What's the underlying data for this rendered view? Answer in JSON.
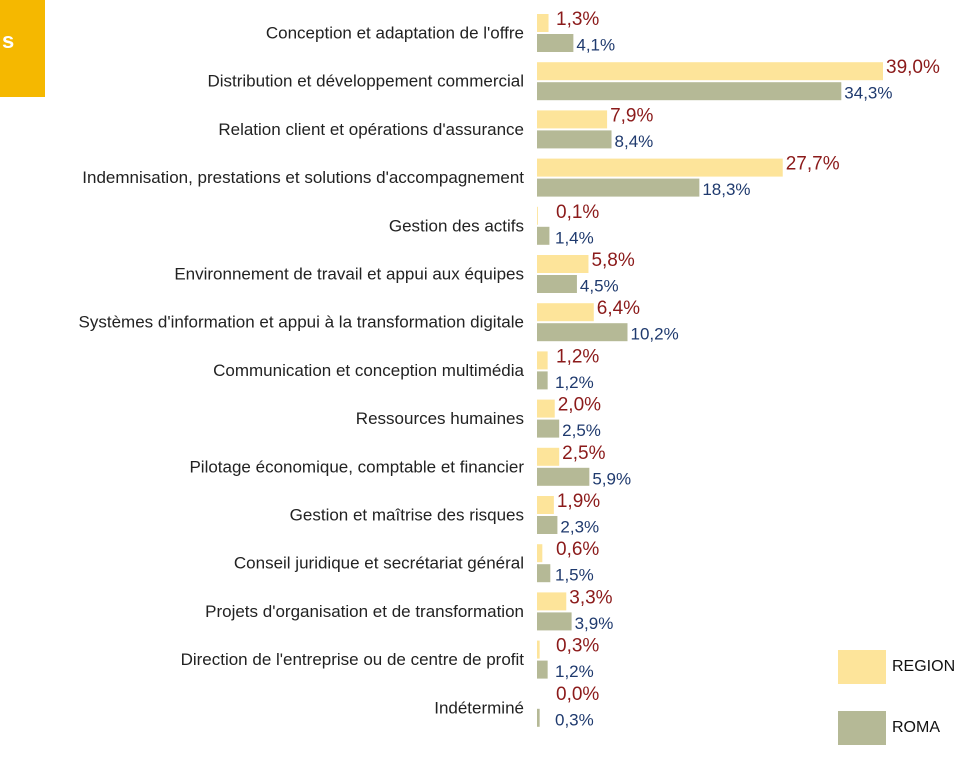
{
  "badge": "s",
  "chart_data": {
    "type": "bar",
    "orientation": "horizontal",
    "categories": [
      "Conception et adaptation de l'offre",
      "Distribution et développement commercial",
      "Relation client et opérations d'assurance",
      "Indemnisation, prestations et solutions d'accompagnement",
      "Gestion des actifs",
      "Environnement de travail et appui aux équipes",
      "Systèmes d'information et appui à la transformation digitale",
      "Communication et conception multimédia",
      "Ressources humaines",
      "Pilotage économique, comptable et financier",
      "Gestion et maîtrise des risques",
      "Conseil juridique et secrétariat général",
      "Projets d'organisation et de transformation",
      "Direction de l'entreprise ou de centre de profit",
      "Indéterminé"
    ],
    "series": [
      {
        "name": "REGION",
        "color": "#fde49a",
        "label_color": "#8b1a1a",
        "values": [
          1.3,
          39.0,
          7.9,
          27.7,
          0.1,
          5.8,
          6.4,
          1.2,
          2.0,
          2.5,
          1.9,
          0.6,
          3.3,
          0.3,
          0.0
        ],
        "value_labels": [
          "1,3%",
          "39,0%",
          "7,9%",
          "27,7%",
          "0,1%",
          "5,8%",
          "6,4%",
          "1,2%",
          "2,0%",
          "2,5%",
          "1,9%",
          "0,6%",
          "3,3%",
          "0,3%",
          "0,0%"
        ]
      },
      {
        "name": "ROMA",
        "color": "#b5b996",
        "label_color": "#1f3a6e",
        "values": [
          4.1,
          34.3,
          8.4,
          18.3,
          1.4,
          4.5,
          10.2,
          1.2,
          2.5,
          5.9,
          2.3,
          1.5,
          3.9,
          1.2,
          0.3
        ],
        "value_labels": [
          "4,1%",
          "34,3%",
          "8,4%",
          "18,3%",
          "1,4%",
          "4,5%",
          "10,2%",
          "1,2%",
          "2,5%",
          "5,9%",
          "2,3%",
          "1,5%",
          "3,9%",
          "1,2%",
          "0,3%"
        ]
      }
    ],
    "legend": "bottom-right"
  }
}
